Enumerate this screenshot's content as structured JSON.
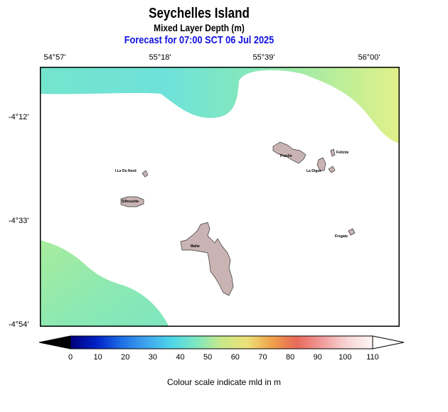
{
  "header": {
    "title": "Seychelles Island",
    "subtitle": "Mixed Layer Depth (m)",
    "forecast": "Forecast for  07:00 SCT 06 Jul 2025"
  },
  "axes": {
    "lon_labels": [
      "54°57'",
      "55°18'",
      "55°39'",
      "56°00'"
    ],
    "lat_labels": [
      "-4°12'",
      "-4°33'",
      "-4°54'"
    ]
  },
  "map": {
    "islands": [
      "I.Le Du Nord",
      "Silhouette",
      "Praslin",
      "Felicite",
      "La Digue",
      "Fregate",
      "Mahe"
    ]
  },
  "colorbar": {
    "ticks": [
      "0",
      "10",
      "20",
      "30",
      "40",
      "50",
      "60",
      "70",
      "80",
      "90",
      "100",
      "110"
    ],
    "colors": [
      "#000080",
      "#0022c8",
      "#1f6fe6",
      "#3fa6ee",
      "#4fd6e8",
      "#7ee8c0",
      "#c8e888",
      "#ece27a",
      "#f0a24a",
      "#e86a5a",
      "#f29a9a",
      "#f7d4d4",
      "#fff4f4"
    ]
  },
  "caption": "Colour scale indicate mld in m",
  "colors": {
    "land": "#c9b3b3",
    "forecast_text": "#1010e0"
  }
}
